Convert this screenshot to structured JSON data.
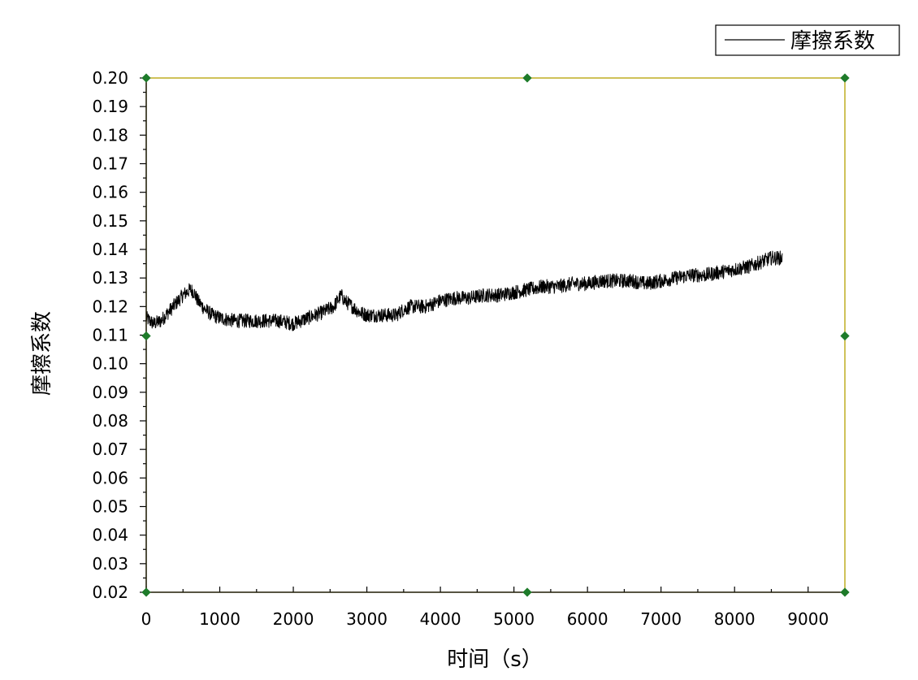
{
  "chart_data": {
    "type": "line",
    "title": "",
    "xlabel": "时间（s）",
    "ylabel": "摩擦系数",
    "xlim": [
      0,
      9500
    ],
    "ylim": [
      0.02,
      0.2
    ],
    "x_ticks": [
      0,
      1000,
      2000,
      3000,
      4000,
      5000,
      6000,
      7000,
      8000,
      9000
    ],
    "x_tick_labels": [
      "0",
      "1000",
      "2000",
      "3000",
      "4000",
      "5000",
      "6000",
      "7000",
      "8000",
      "9000"
    ],
    "y_ticks": [
      0.02,
      0.03,
      0.04,
      0.05,
      0.06,
      0.07,
      0.08,
      0.09,
      0.1,
      0.11,
      0.12,
      0.13,
      0.14,
      0.15,
      0.16,
      0.17,
      0.18,
      0.19,
      0.2
    ],
    "y_tick_labels": [
      "0.02",
      "0.03",
      "0.04",
      "0.05",
      "0.06",
      "0.07",
      "0.08",
      "0.09",
      "0.10",
      "0.11",
      "0.12",
      "0.13",
      "0.14",
      "0.15",
      "0.16",
      "0.17",
      "0.18",
      "0.19",
      "0.20"
    ],
    "grid": false,
    "legend": {
      "position": "top-right",
      "entries": [
        "摩擦系数"
      ]
    },
    "series": [
      {
        "name": "摩擦系数",
        "color": "#000000",
        "noise_amplitude": 0.0025,
        "x": [
          0,
          100,
          200,
          300,
          400,
          500,
          600,
          650,
          700,
          800,
          900,
          1000,
          1200,
          1400,
          1600,
          1800,
          2000,
          2200,
          2400,
          2550,
          2650,
          2700,
          2800,
          2900,
          3000,
          3200,
          3400,
          3500,
          3600,
          3800,
          4000,
          4200,
          4400,
          4600,
          4800,
          5000,
          5200,
          5400,
          5600,
          5800,
          6000,
          6200,
          6400,
          6600,
          6800,
          7000,
          7200,
          7400,
          7600,
          7800,
          8000,
          8200,
          8400,
          8500,
          8650
        ],
        "y": [
          0.116,
          0.114,
          0.115,
          0.118,
          0.121,
          0.124,
          0.126,
          0.125,
          0.122,
          0.119,
          0.117,
          0.116,
          0.115,
          0.115,
          0.115,
          0.115,
          0.114,
          0.116,
          0.118,
          0.12,
          0.124,
          0.122,
          0.12,
          0.118,
          0.117,
          0.117,
          0.117,
          0.119,
          0.12,
          0.12,
          0.122,
          0.123,
          0.123,
          0.124,
          0.124,
          0.125,
          0.126,
          0.127,
          0.127,
          0.128,
          0.128,
          0.129,
          0.129,
          0.129,
          0.128,
          0.129,
          0.13,
          0.131,
          0.131,
          0.132,
          0.133,
          0.134,
          0.136,
          0.137,
          0.137
        ]
      }
    ]
  },
  "style": {
    "frame_color": "#b5a000",
    "marker_color": "#1e7b2a",
    "text_color": "#000000"
  }
}
